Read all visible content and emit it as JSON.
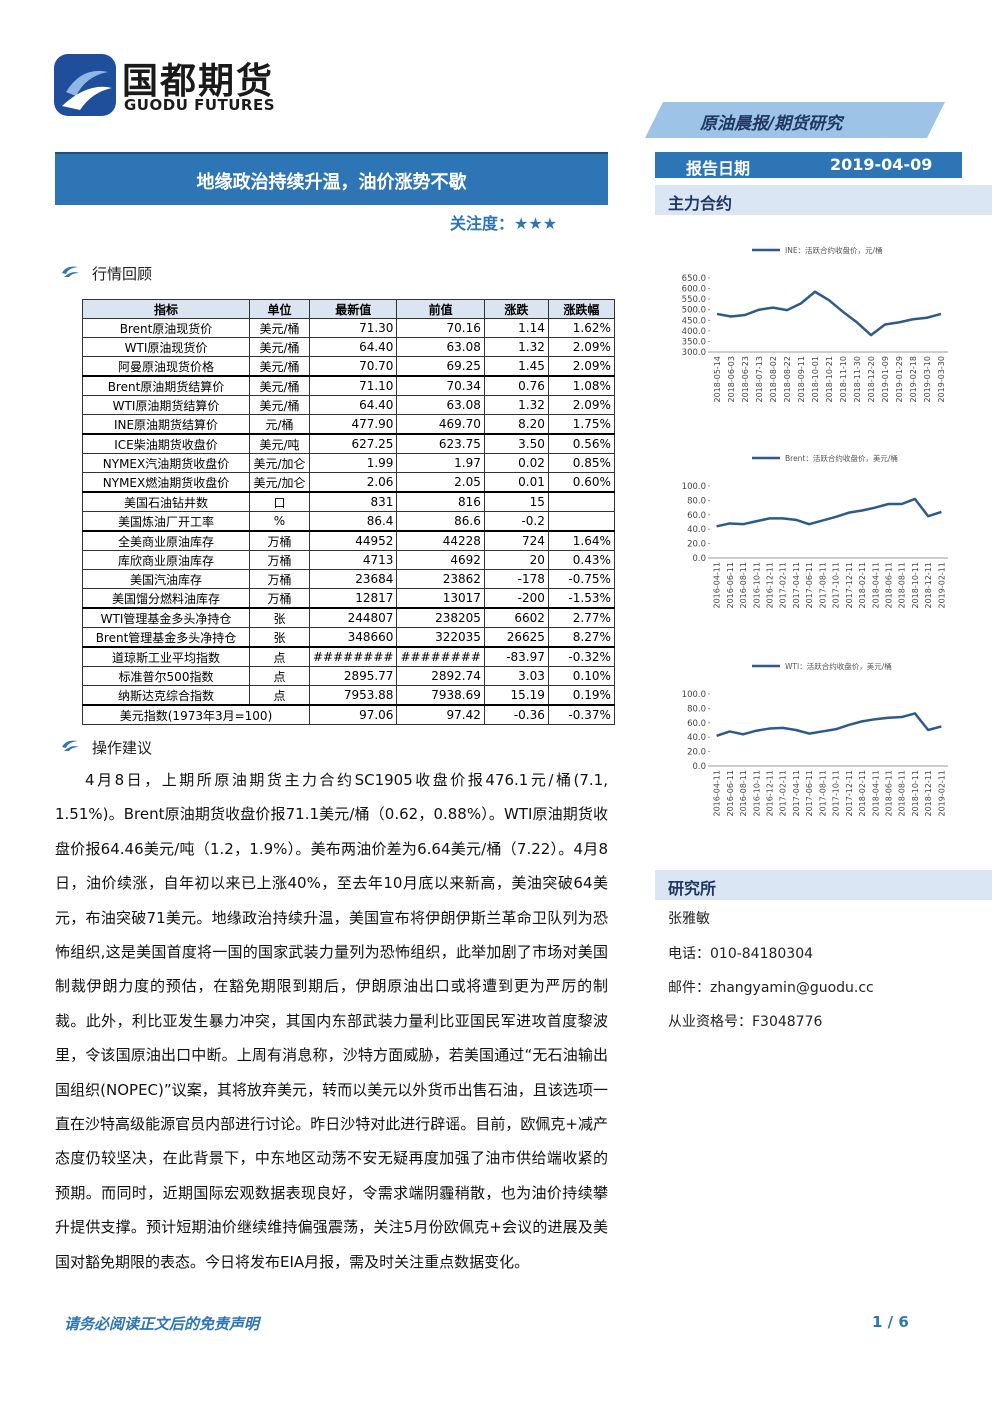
{
  "header": {
    "logo_cn": "国都期货",
    "logo_en": "GUODU FUTURES",
    "banner": "原油晨报/期货研究"
  },
  "title": "地缘政治持续升温，油价涨势不歇",
  "attention": {
    "label": "关注度：",
    "stars": "★★★"
  },
  "report_date": {
    "label": "报告日期",
    "value": "2019-04-09"
  },
  "side_section": "主力合约",
  "market_review": {
    "heading": "行情回顾",
    "table": {
      "headers": [
        "指标",
        "单位",
        "最新值",
        "前值",
        "涨跌",
        "涨跌幅"
      ],
      "rows": [
        [
          "Brent原油现货价",
          "美元/桶",
          "71.30",
          "70.16",
          "1.14",
          "1.62%"
        ],
        [
          "WTI原油现货价",
          "美元/桶",
          "64.40",
          "63.08",
          "1.32",
          "2.09%"
        ],
        [
          "阿曼原油现货价格",
          "美元/桶",
          "70.70",
          "69.25",
          "1.45",
          "2.09%"
        ],
        [
          "Brent原油期货结算价",
          "美元/桶",
          "71.10",
          "70.34",
          "0.76",
          "1.08%"
        ],
        [
          "WTI原油期货结算价",
          "美元/桶",
          "64.40",
          "63.08",
          "1.32",
          "2.09%"
        ],
        [
          "INE原油期货结算价",
          "元/桶",
          "477.90",
          "469.70",
          "8.20",
          "1.75%"
        ],
        [
          "ICE柴油期货收盘价",
          "美元/吨",
          "627.25",
          "623.75",
          "3.50",
          "0.56%"
        ],
        [
          "NYMEX汽油期货收盘价",
          "美元/加仑",
          "1.99",
          "1.97",
          "0.02",
          "0.85%"
        ],
        [
          "NYMEX燃油期货收盘价",
          "美元/加仑",
          "2.06",
          "2.05",
          "0.01",
          "0.60%"
        ],
        [
          "美国石油钻井数",
          "口",
          "831",
          "816",
          "15",
          null
        ],
        [
          "美国炼油厂开工率",
          "%",
          "86.4",
          "86.6",
          "-0.2",
          null
        ],
        [
          "全美商业原油库存",
          "万桶",
          "44952",
          "44228",
          "724",
          "1.64%"
        ],
        [
          "库欣商业原油库存",
          "万桶",
          "4713",
          "4692",
          "20",
          "0.43%"
        ],
        [
          "美国汽油库存",
          "万桶",
          "23684",
          "23862",
          "-178",
          "-0.75%"
        ],
        [
          "美国馏分燃料油库存",
          "万桶",
          "12817",
          "13017",
          "-200",
          "-1.53%"
        ],
        [
          "WTI管理基金多头净持仓",
          "张",
          "244807",
          "238205",
          "6602",
          "2.77%"
        ],
        [
          "Brent管理基金多头净持仓",
          "张",
          "348660",
          "322035",
          "26625",
          "8.27%"
        ],
        [
          "道琼斯工业平均指数",
          "点",
          "########",
          "########",
          "-83.97",
          "-0.32%"
        ],
        [
          "标准普尔500指数",
          "点",
          "2895.77",
          "2892.74",
          "3.03",
          "0.10%"
        ],
        [
          "纳斯达克综合指数",
          "点",
          "7953.88",
          "7938.69",
          "15.19",
          "0.19%"
        ],
        [
          "美元指数(1973年3月=100)",
          null,
          "97.06",
          "97.42",
          "-0.36",
          "-0.37%"
        ]
      ]
    }
  },
  "advice": {
    "heading": "操作建议",
    "text": "4月8日，上期所原油期货主力合约SC1905收盘价报476.1元/桶(7.1, 1.51%)。Brent原油期货收盘价报71.1美元/桶（0.62，0.88%）。WTI原油期货收盘价报64.46美元/吨（1.2，1.9%）。美布两油价差为6.64美元/桶（7.22）。4月8日，油价续涨，自年初以来已上涨40%，至去年10月底以来新高，美油突破64美元，布油突破71美元。地缘政治持续升温，美国宣布将伊朗伊斯兰革命卫队列为恐怖组织,这是美国首度将一国的国家武装力量列为恐怖组织，此举加剧了市场对美国制裁伊朗力度的预估，在豁免期限到期后，伊朗原油出口或将遭到更为严厉的制裁。此外，利比亚发生暴力冲突，其国内东部武装力量利比亚国民军进攻首度黎波里，令该国原油出口中断。上周有消息称，沙特方面威胁，若美国通过“无石油输出国组织(NOPEC)”议案，其将放弃美元，转而以美元以外货币出售石油，且该选项一直在沙特高级能源官员内部进行讨论。昨日沙特对此进行辟谣。目前，欧佩克+减产态度仍较坚决，在此背景下，中东地区动荡不安无疑再度加强了油市供给端收紧的预期。而同时，近期国际宏观数据表现良好，令需求端阴霾稍散，也为油价持续攀升提供支撑。预计短期油价继续维持偏强震荡，关注5月份欧佩克+会议的进展及美国对豁免期限的表态。今日将发布EIA月报，需及时关注重点数据变化。"
  },
  "chart_data": [
    {
      "type": "line",
      "categories": [
        "2018-05-14",
        "2018-06-03",
        "2018-06-23",
        "2018-07-13",
        "2018-08-02",
        "2018-08-22",
        "2018-09-11",
        "2018-10-01",
        "2018-10-21",
        "2018-11-10",
        "2018-11-30",
        "2018-12-20",
        "2019-01-09",
        "2019-01-29",
        "2019-02-18",
        "2019-03-10",
        "2019-03-30"
      ],
      "series": [
        {
          "name": "INE：活跃合约收盘价，元/桶",
          "color": "#2e5a8a",
          "values": [
            480,
            468,
            475,
            500,
            510,
            498,
            530,
            585,
            545,
            490,
            440,
            380,
            430,
            440,
            455,
            462,
            480
          ]
        }
      ],
      "ylim": [
        300,
        650
      ],
      "yticks": [
        {
          "value": 300,
          "label": "300.0"
        },
        {
          "value": 350,
          "label": "350.0"
        },
        {
          "value": 400,
          "label": "400.0"
        },
        {
          "value": 450,
          "label": "450.0"
        },
        {
          "value": 500,
          "label": "500.0"
        },
        {
          "value": 550,
          "label": "550.0"
        },
        {
          "value": 600,
          "label": "600.0"
        },
        {
          "value": 650,
          "label": "650.0"
        }
      ]
    },
    {
      "type": "line",
      "categories": [
        "2016-04-11",
        "2016-06-11",
        "2016-08-11",
        "2016-10-11",
        "2016-12-11",
        "2017-02-11",
        "2017-04-11",
        "2017-06-11",
        "2017-08-11",
        "2017-10-11",
        "2017-12-11",
        "2018-02-11",
        "2018-04-11",
        "2018-06-11",
        "2018-08-11",
        "2018-10-11",
        "2018-12-11",
        "2019-02-11"
      ],
      "series": [
        {
          "name": "Brent：活跃合约收盘价，美元/桶",
          "color": "#2e5a8a",
          "values": [
            44,
            48,
            47,
            51,
            55,
            55,
            53,
            47,
            52,
            57,
            63,
            66,
            70,
            75,
            75,
            82,
            58,
            64
          ]
        }
      ],
      "ylim": [
        0,
        100
      ],
      "yticks": [
        {
          "value": 0,
          "label": "0.0"
        },
        {
          "value": 20,
          "label": "20.0"
        },
        {
          "value": 40,
          "label": "40.0"
        },
        {
          "value": 60,
          "label": "60.0"
        },
        {
          "value": 80,
          "label": "80.0"
        },
        {
          "value": 100,
          "label": "100.0"
        }
      ]
    },
    {
      "type": "line",
      "categories": [
        "2016-04-11",
        "2016-06-11",
        "2016-08-11",
        "2016-10-11",
        "2016-12-11",
        "2017-02-11",
        "2017-04-11",
        "2017-06-11",
        "2017-08-11",
        "2017-10-11",
        "2017-12-11",
        "2018-02-11",
        "2018-04-11",
        "2018-06-11",
        "2018-08-11",
        "2018-10-11",
        "2018-12-11",
        "2019-02-11"
      ],
      "series": [
        {
          "name": "WTI：活跃合约收盘价，美元/桶",
          "color": "#2e5a8a",
          "values": [
            42,
            48,
            44,
            49,
            52,
            53,
            50,
            45,
            48,
            51,
            57,
            62,
            65,
            67,
            68,
            73,
            50,
            55
          ]
        }
      ],
      "ylim": [
        0,
        100
      ],
      "yticks": [
        {
          "value": 0,
          "label": "0.0"
        },
        {
          "value": 20,
          "label": "20.0"
        },
        {
          "value": 40,
          "label": "40.0"
        },
        {
          "value": 60,
          "label": "60.0"
        },
        {
          "value": 80,
          "label": "80.0"
        },
        {
          "value": 100,
          "label": "100.0"
        }
      ]
    }
  ],
  "research": {
    "heading": "研究所",
    "name": "张雅敏",
    "phone": "电话：010-84180304",
    "email": "邮件：zhangyamin@guodu.cc",
    "cert": "从业资格号：F3048776"
  },
  "footer": {
    "disclaimer": "请务必阅读正文后的免责声明",
    "page": "1 / 6"
  }
}
